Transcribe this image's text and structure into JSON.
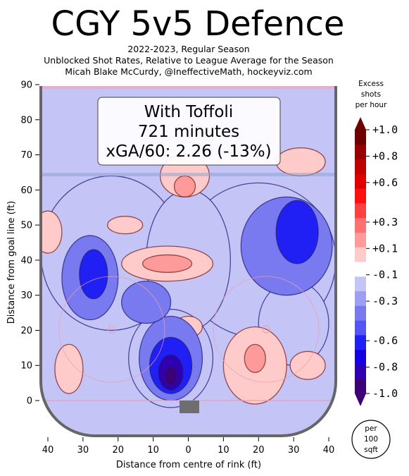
{
  "chart_data": {
    "type": "heatmap",
    "title": "CGY 5v5 Defence",
    "subtitle_lines": [
      "2022-2023, Regular Season",
      "Unblocked Shot Rates, Relative to League Average for the Season",
      "Micah Blake McCurdy, @IneffectiveMath, hockeyviz.com"
    ],
    "annotation_lines": [
      "With Toffoli",
      "721 minutes",
      "xGA/60: 2.26 (-13%)"
    ],
    "xlabel": "Distance from centre of rink (ft)",
    "ylabel": "Distance from goal line (ft)",
    "xlim": [
      -42,
      42
    ],
    "ylim": [
      -11,
      90
    ],
    "x_tick_values": [
      -40,
      -30,
      -20,
      -10,
      0,
      10,
      20,
      30,
      40
    ],
    "x_tick_labels": [
      "40",
      "30",
      "20",
      "10",
      "0",
      "10",
      "20",
      "30",
      "40"
    ],
    "y_ticks": [
      0,
      10,
      20,
      30,
      40,
      50,
      60,
      70,
      80,
      90
    ],
    "colorbar": {
      "title_lines": [
        "Excess",
        "shots",
        "per hour"
      ],
      "range": [
        -1.0,
        1.0
      ],
      "tick_values": [
        1.0,
        0.8,
        0.6,
        0.3,
        0.1,
        -0.1,
        -0.3,
        -0.6,
        -0.8,
        -1.0
      ],
      "tick_labels": [
        "+1.0",
        "+0.8",
        "+0.6",
        "+0.3",
        "+0.1",
        "-0.1",
        "-0.3",
        "-0.6",
        "-0.8",
        "-1.0"
      ],
      "level_colors": [
        "#3d0078",
        "#2e00b0",
        "#1500e0",
        "#2020f5",
        "#5555f5",
        "#7a7af0",
        "#9e9ef2",
        "#c4c4f7",
        "#ffffff",
        "#ffcaca",
        "#ff9a9a",
        "#ff7070",
        "#ff4040",
        "#ff1010",
        "#e00000",
        "#c00000",
        "#990000",
        "#700000"
      ]
    },
    "unit_note_lines": [
      "per",
      "100",
      "sqft"
    ],
    "regions": [
      {
        "level": -0.1,
        "cx": -22,
        "cy": 42,
        "rx": 20,
        "ry": 22
      },
      {
        "level": -0.1,
        "cx": 20,
        "cy": 40,
        "rx": 22,
        "ry": 22
      },
      {
        "level": -0.1,
        "cx": 0,
        "cy": 40,
        "rx": 12,
        "ry": 20
      },
      {
        "level": -0.1,
        "cx": -5,
        "cy": 12,
        "rx": 12,
        "ry": 14
      },
      {
        "level": -0.1,
        "cx": 30,
        "cy": 22,
        "rx": 10,
        "ry": 12
      },
      {
        "level": -0.3,
        "cx": 28,
        "cy": 44,
        "rx": 13,
        "ry": 14
      },
      {
        "level": -0.3,
        "cx": -28,
        "cy": 35,
        "rx": 8,
        "ry": 12
      },
      {
        "level": -0.3,
        "cx": -5,
        "cy": 12,
        "rx": 9,
        "ry": 12
      },
      {
        "level": -0.3,
        "cx": -12,
        "cy": 28,
        "rx": 7,
        "ry": 6
      },
      {
        "level": -0.6,
        "cx": 31,
        "cy": 48,
        "rx": 6,
        "ry": 9
      },
      {
        "level": -0.6,
        "cx": -27,
        "cy": 36,
        "rx": 4,
        "ry": 7
      },
      {
        "level": -0.6,
        "cx": -5,
        "cy": 10,
        "rx": 6,
        "ry": 8
      },
      {
        "level": -0.8,
        "cx": -5,
        "cy": 8,
        "rx": 3.5,
        "ry": 5
      },
      {
        "level": -1.0,
        "cx": -5,
        "cy": 7,
        "rx": 1.8,
        "ry": 2.6
      },
      {
        "level": 0.1,
        "cx": -1,
        "cy": 64,
        "rx": 7,
        "ry": 6
      },
      {
        "level": 0.1,
        "cx": 32,
        "cy": 68,
        "rx": 7,
        "ry": 4
      },
      {
        "level": 0.1,
        "cx": -40,
        "cy": 48,
        "rx": 4,
        "ry": 6
      },
      {
        "level": 0.1,
        "cx": -18,
        "cy": 50,
        "rx": 5,
        "ry": 2.5
      },
      {
        "level": 0.1,
        "cx": -6,
        "cy": 39,
        "rx": 13,
        "ry": 5
      },
      {
        "level": 0.1,
        "cx": 0,
        "cy": 21,
        "rx": 4,
        "ry": 3
      },
      {
        "level": 0.1,
        "cx": 19,
        "cy": 10,
        "rx": 9,
        "ry": 11
      },
      {
        "level": 0.1,
        "cx": 34,
        "cy": 10,
        "rx": 5,
        "ry": 4
      },
      {
        "level": 0.1,
        "cx": -34,
        "cy": 9,
        "rx": 4,
        "ry": 7
      },
      {
        "level": 0.3,
        "cx": -1,
        "cy": 61,
        "rx": 3,
        "ry": 3
      },
      {
        "level": 0.3,
        "cx": -6,
        "cy": 39,
        "rx": 7,
        "ry": 2.5
      },
      {
        "level": 0.3,
        "cx": 19,
        "cy": 12,
        "rx": 3,
        "ry": 4
      }
    ]
  }
}
